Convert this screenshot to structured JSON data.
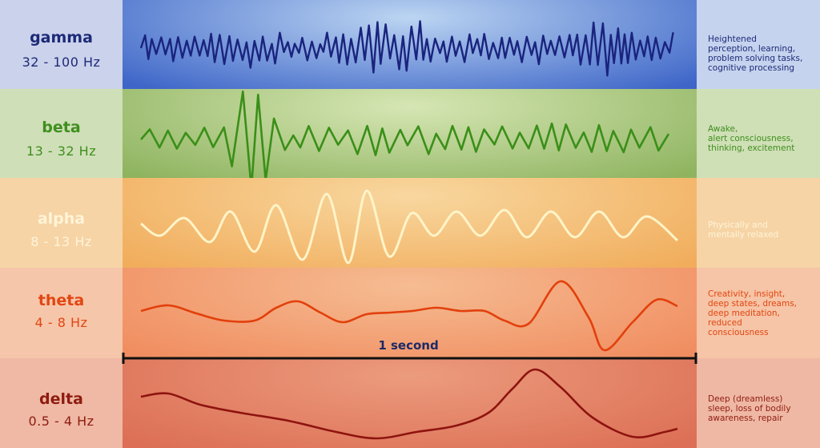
{
  "bands": [
    {
      "id": "gamma",
      "name": "gamma",
      "range": "32 - 100 Hz",
      "lines": [
        "Heightened",
        "perception, learning,",
        "problem solving tasks,",
        "cognitive processing"
      ],
      "colors": {
        "left": "#cbd2eb",
        "center_a": "#3e66c8",
        "center_b": "#bcd5f2",
        "right": "#c6d3ee",
        "text": "#1c2a78",
        "desc": "#1c2a78",
        "wave": "#1a237e"
      }
    },
    {
      "id": "beta",
      "name": "beta",
      "range": "13 - 32 Hz",
      "lines": [
        "Awake,",
        "alert consciousness,",
        "thinking, excitement"
      ],
      "colors": {
        "left": "#cfdfb8",
        "center_a": "#8fb460",
        "center_b": "#d6e6b4",
        "right": "#cfdfb6",
        "text": "#3f8f1e",
        "desc": "#3f8f1e",
        "wave": "#3a8f18"
      }
    },
    {
      "id": "alpha",
      "name": "alpha",
      "range": "8 - 13 Hz",
      "lines": [
        "Physically and",
        "mentally relaxed"
      ],
      "colors": {
        "left": "#f6d4a6",
        "center_a": "#f1ad5c",
        "center_b": "#f8d79f",
        "right": "#f6d4a6",
        "text": "#fff4d8",
        "desc": "#fff4d8",
        "wave": "#fff4c8"
      }
    },
    {
      "id": "theta",
      "name": "theta",
      "range": "4 - 8 Hz",
      "lines": [
        "Creativity, insight,",
        "deep states, dreams,",
        "deep meditation,",
        "reduced",
        "consciousness"
      ],
      "colors": {
        "left": "#f6c6aa",
        "center_a": "#f08d60",
        "center_b": "#f6bc92",
        "right": "#f6c4a6",
        "text": "#e24612",
        "desc": "#e24612",
        "wave": "#e2400c"
      }
    },
    {
      "id": "delta",
      "name": "delta",
      "range": "0.5 - 4 Hz",
      "lines": [
        "Deep (dreamless)",
        "sleep, loss of bodily",
        "awareness, repair"
      ],
      "colors": {
        "left": "#efb9a5",
        "center_a": "#dc6f55",
        "center_b": "#ec9b7d",
        "right": "#efb8a4",
        "text": "#8e1c10",
        "desc": "#8e1c10",
        "wave": "#8e1410"
      }
    }
  ],
  "scale": {
    "label": "1 second",
    "color": "#111111"
  }
}
